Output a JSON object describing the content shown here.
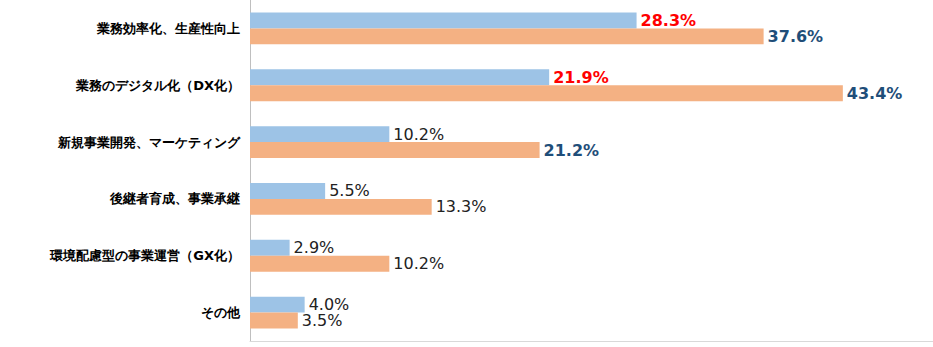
{
  "chart_data": {
    "type": "bar",
    "orientation": "horizontal",
    "categories": [
      "業務効率化、生産性向上",
      "業務のデジタル化（DX化）",
      "新規事業開発、マーケティング",
      "後継者育成、事業承継",
      "環境配慮型の事業運営（GX化）",
      "その他"
    ],
    "series": [
      {
        "color": "#9DC3E6",
        "values": [
          28.3,
          21.9,
          10.2,
          5.5,
          2.9,
          4.0
        ],
        "value_labels": [
          "28.3%",
          "21.9%",
          "10.2%",
          "5.5%",
          "2.9%",
          "4.0%"
        ]
      },
      {
        "color": "#F4B183",
        "values": [
          37.6,
          43.4,
          21.2,
          13.3,
          10.2,
          3.5
        ],
        "value_labels": [
          "37.6%",
          "43.4%",
          "21.2%",
          "13.3%",
          "10.2%",
          "3.5%"
        ]
      }
    ],
    "xlim": [
      0,
      50
    ],
    "grid": false,
    "data_labels": true,
    "tick_labels": "y"
  }
}
